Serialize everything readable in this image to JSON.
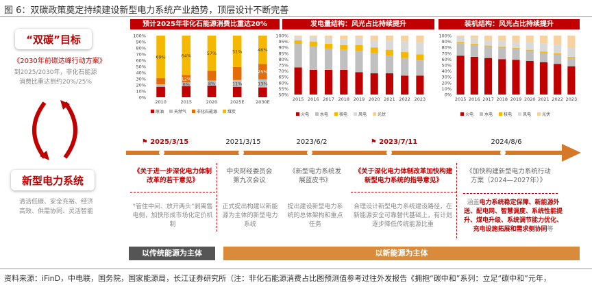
{
  "figure_title": "图 6：双碳政策奠定持续建设新型电力系统产业趋势，顶层设计不断完善",
  "left": {
    "dual_carbon": {
      "title": "“双碳”目标",
      "doc": "《2030年前碳达峰行动方案》",
      "text": "到2025/2030年，非化石能源消费比重达到约20%/25%"
    },
    "new_power": {
      "title": "新型电力系统",
      "text_line1": "清洁低碳、安全充裕、经济",
      "text_line2": "高效、供需协同、灵活智能"
    }
  },
  "colors": {
    "red": "#c00000",
    "grey": "#bfbfbf",
    "orange": "#f5b800",
    "dark_orange": "#e36c09",
    "light_grey": "#d9d9d9",
    "pale": "#f6d2a0",
    "timeline": "#d4782a"
  },
  "chart_data": [
    {
      "type": "bar",
      "header": "预计2025年非化石能源消费比重达20%",
      "categories": [
        "2010",
        "2015",
        "2020",
        "2025E",
        "2030E"
      ],
      "ylim": [
        0,
        100
      ],
      "yticks": [
        "100%",
        "90%",
        "80%",
        "70%",
        "60%",
        "50%",
        "40%",
        "30%",
        "20%",
        "10%",
        "0%"
      ],
      "series": [
        {
          "name": "原油",
          "color": "#c00000",
          "values": [
            17,
            18,
            19,
            17,
            16
          ],
          "labels": [
            "",
            "",
            "",
            "",
            ""
          ]
        },
        {
          "name": "天然气",
          "color": "#bfbfbf",
          "values": [
            4,
            6,
            8,
            11,
            13
          ],
          "labels": [
            "",
            "6%",
            "8%",
            "11%",
            "13%"
          ]
        },
        {
          "name": "非化石能源",
          "color": "#e36c09",
          "values": [
            10,
            12,
            16,
            21,
            25
          ],
          "labels": [
            "",
            "12%",
            "",
            "",
            "25%"
          ]
        },
        {
          "name": "煤炭",
          "color": "#f5b800",
          "values": [
            69,
            64,
            57,
            51,
            46
          ],
          "labels": [
            "69%",
            "64%",
            "57%",
            "51%",
            "46%"
          ]
        }
      ]
    },
    {
      "type": "bar",
      "header": "发电量结构：风光占比持续提升",
      "categories": [
        "2015",
        "2016",
        "2017",
        "2018",
        "2019",
        "2020",
        "2021",
        "2022",
        "2023"
      ],
      "ylim": [
        0,
        100
      ],
      "yticks": [
        "100%",
        "95%",
        "90%",
        "85%",
        "80%",
        "75%",
        "70%",
        "65%",
        "60%",
        "55%",
        "50%"
      ],
      "series": [
        {
          "name": "火电",
          "color": "#c00000",
          "values": [
            73,
            71,
            71,
            71,
            69,
            68,
            68,
            66,
            66
          ]
        },
        {
          "name": "水电",
          "color": "#bfbfbf",
          "values": [
            20,
            20,
            18,
            17,
            18,
            17,
            15,
            15,
            13
          ]
        },
        {
          "name": "核电",
          "color": "#f5b800",
          "values": [
            3,
            4,
            4,
            4,
            5,
            5,
            5,
            5,
            5
          ]
        },
        {
          "name": "风电",
          "color": "#d9d9d9",
          "values": [
            3,
            4,
            5,
            5,
            6,
            6,
            8,
            9,
            10
          ]
        },
        {
          "name": "光伏",
          "color": "#f6d2a0",
          "values": [
            1,
            1,
            2,
            3,
            2,
            4,
            4,
            5,
            6
          ]
        }
      ]
    },
    {
      "type": "bar",
      "header": "装机结构：风光占比持续提升",
      "categories": [
        "2015",
        "2016",
        "2017",
        "2018",
        "2019",
        "2020",
        "2021",
        "2022",
        "2023"
      ],
      "ylim": [
        0,
        100
      ],
      "yticks": [
        "100%",
        "90%",
        "80%",
        "70%",
        "60%",
        "50%",
        "40%",
        "30%",
        "20%",
        "10%",
        "0%"
      ],
      "series": [
        {
          "name": "火电",
          "color": "#c00000",
          "values": [
            66,
            64,
            62,
            60,
            59,
            57,
            55,
            52,
            48
          ]
        },
        {
          "name": "水电",
          "color": "#bfbfbf",
          "values": [
            21,
            20,
            19,
            19,
            18,
            17,
            16,
            16,
            14
          ]
        },
        {
          "name": "核电",
          "color": "#f5b800",
          "values": [
            2,
            2,
            2,
            2,
            2,
            2,
            2,
            2,
            2
          ]
        },
        {
          "name": "风电",
          "color": "#d9d9d9",
          "values": [
            9,
            9,
            9,
            10,
            10,
            13,
            14,
            14,
            15
          ]
        },
        {
          "name": "光伏",
          "color": "#f6d2a0",
          "values": [
            2,
            5,
            8,
            9,
            11,
            11,
            13,
            16,
            21
          ]
        }
      ]
    }
  ],
  "timeline": [
    {
      "date": "2025/3/15",
      "flag": true,
      "doc": "《关于进一步深化电力体制改革的若干意见》",
      "doc_red": true,
      "desc": "“管住中间、放开两头”剥离售电侧，加快形成市场化定价机制"
    },
    {
      "date": "2021/3/15",
      "flag": false,
      "doc": "中央财经委员会第九次会议",
      "doc_red": false,
      "desc": "正式提出构建以新能源为主体的新型电力系统"
    },
    {
      "date": "2023/6/2",
      "flag": false,
      "doc": "《新型电力系统发展蓝皮书》",
      "doc_red": false,
      "desc": "提出建设新型电力系统的总体架构和重点任务"
    },
    {
      "date": "2023/7/11",
      "flag": true,
      "doc": "《关于深化电力体制改革加快构建新型电力系统的指导意见》",
      "doc_red": true,
      "desc": "合理设计新型电力系统建设路径，在新能源安全可靠替代基础上，有计划逐步降低传统能源比重"
    },
    {
      "date": "2024/8/6",
      "flag": false,
      "doc": "《加快构建新型电力系统行动方案（2024—2027年）》",
      "doc_red": false,
      "desc_parts": [
        "涵盖",
        "电力系统稳定保障、新能源外送、配电网、智慧调度、系统性能提升、煤电升级、系统调节能力优化、充电设施拓展和需求侧协同",
        "等"
      ]
    }
  ],
  "bands": {
    "left": "以传统能源为主体",
    "right": "以新能源为主体"
  },
  "source": "资料来源：iFinD，中电联，国务院，国家能源局，长江证券研究所（注：非化石能源消费占比图预测值参考过往外发报告《拥抱“碳中和”系列：立足“碳中和”元年，"
}
